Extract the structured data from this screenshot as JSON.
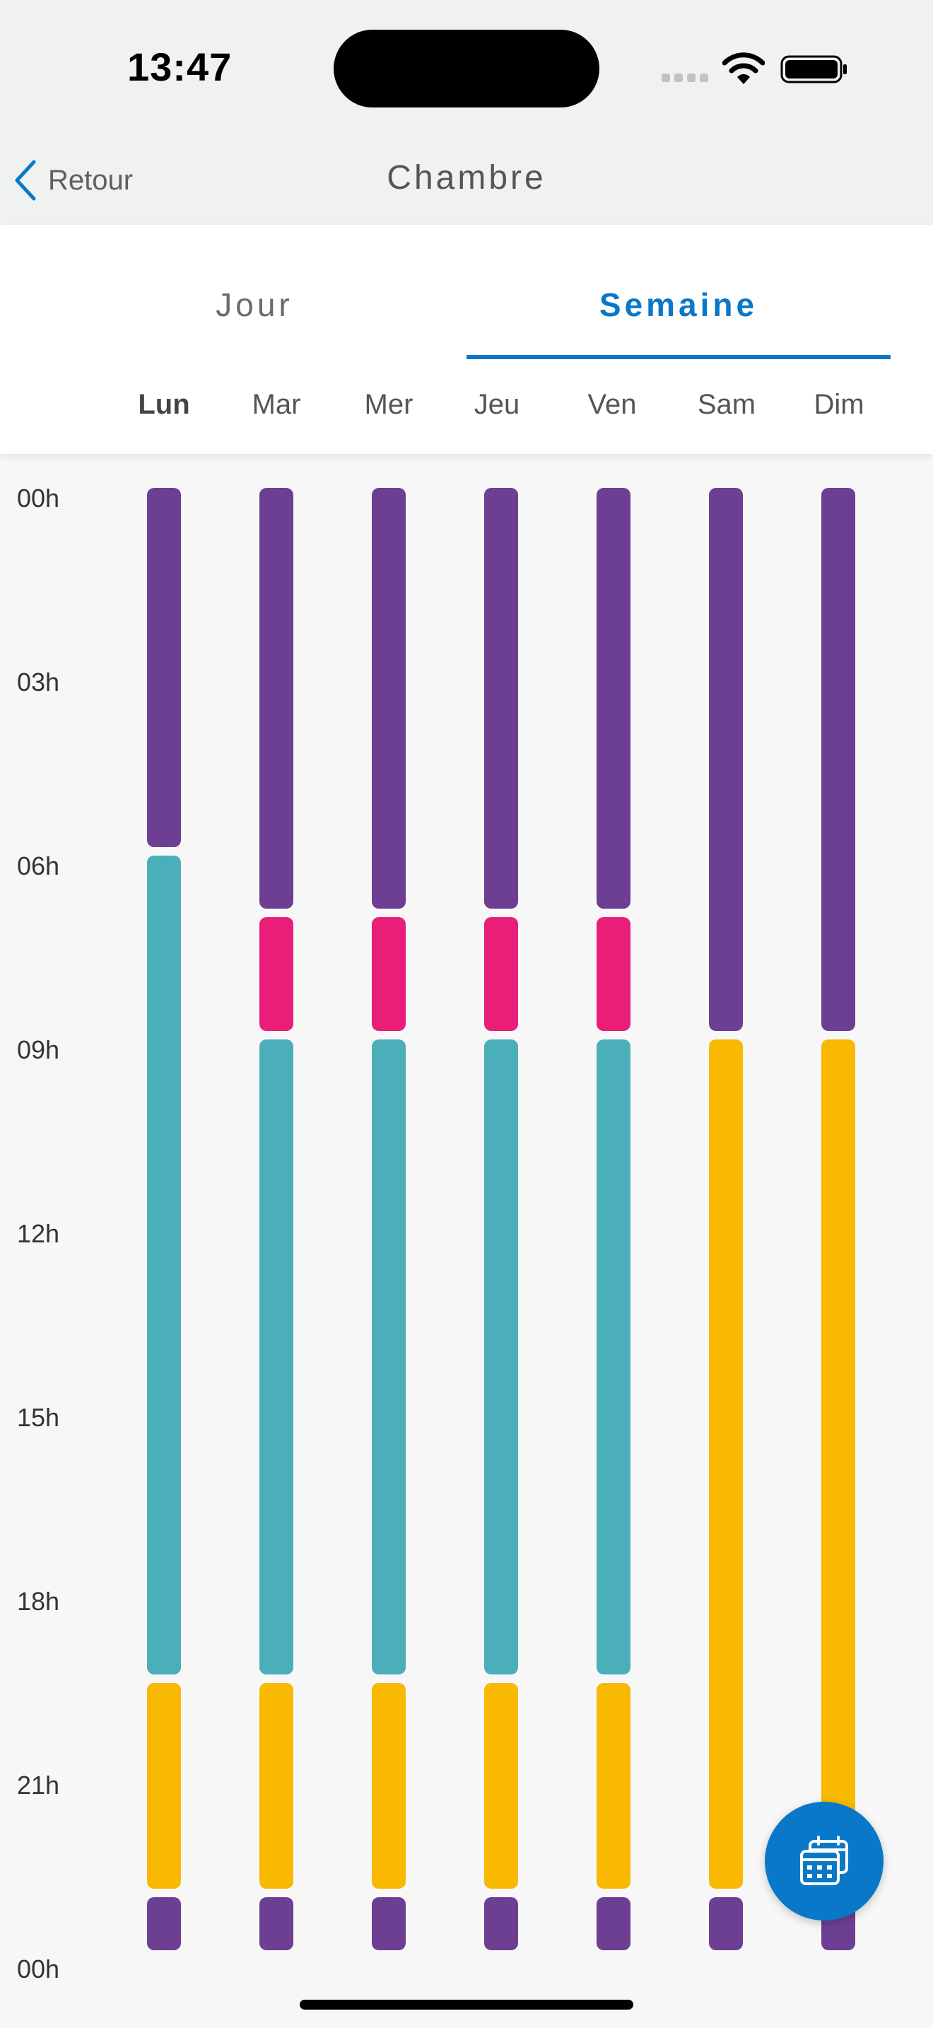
{
  "status_bar": {
    "time": "13:47"
  },
  "nav": {
    "back_label": "Retour",
    "title": "Chambre"
  },
  "tabs": [
    {
      "label": "Jour",
      "selected": false
    },
    {
      "label": "Semaine",
      "selected": true
    }
  ],
  "days": [
    {
      "label": "Lun",
      "active": true
    },
    {
      "label": "Mar",
      "active": false
    },
    {
      "label": "Mer",
      "active": false
    },
    {
      "label": "Jeu",
      "active": false
    },
    {
      "label": "Ven",
      "active": false
    },
    {
      "label": "Sam",
      "active": false
    },
    {
      "label": "Dim",
      "active": false
    }
  ],
  "hour_labels": [
    "00h",
    "03h",
    "06h",
    "09h",
    "12h",
    "15h",
    "18h",
    "21h",
    "00h"
  ],
  "colors": {
    "purple": "#6c3f93",
    "teal": "#4bafb9",
    "pink": "#e81e78",
    "yellow": "#f8b900",
    "accent": "#0a78c8"
  },
  "schedule": [
    [
      {
        "start": 0,
        "end": 6,
        "color": "purple"
      },
      {
        "start": 6,
        "end": 19.5,
        "color": "teal"
      },
      {
        "start": 19.5,
        "end": 23,
        "color": "yellow"
      },
      {
        "start": 23,
        "end": 24,
        "color": "purple"
      }
    ],
    [
      {
        "start": 0,
        "end": 7,
        "color": "purple"
      },
      {
        "start": 7,
        "end": 9,
        "color": "pink"
      },
      {
        "start": 9,
        "end": 19.5,
        "color": "teal"
      },
      {
        "start": 19.5,
        "end": 23,
        "color": "yellow"
      },
      {
        "start": 23,
        "end": 24,
        "color": "purple"
      }
    ],
    [
      {
        "start": 0,
        "end": 7,
        "color": "purple"
      },
      {
        "start": 7,
        "end": 9,
        "color": "pink"
      },
      {
        "start": 9,
        "end": 19.5,
        "color": "teal"
      },
      {
        "start": 19.5,
        "end": 23,
        "color": "yellow"
      },
      {
        "start": 23,
        "end": 24,
        "color": "purple"
      }
    ],
    [
      {
        "start": 0,
        "end": 7,
        "color": "purple"
      },
      {
        "start": 7,
        "end": 9,
        "color": "pink"
      },
      {
        "start": 9,
        "end": 19.5,
        "color": "teal"
      },
      {
        "start": 19.5,
        "end": 23,
        "color": "yellow"
      },
      {
        "start": 23,
        "end": 24,
        "color": "purple"
      }
    ],
    [
      {
        "start": 0,
        "end": 7,
        "color": "purple"
      },
      {
        "start": 7,
        "end": 9,
        "color": "pink"
      },
      {
        "start": 9,
        "end": 19.5,
        "color": "teal"
      },
      {
        "start": 19.5,
        "end": 23,
        "color": "yellow"
      },
      {
        "start": 23,
        "end": 24,
        "color": "purple"
      }
    ],
    [
      {
        "start": 0,
        "end": 9,
        "color": "purple"
      },
      {
        "start": 9,
        "end": 23,
        "color": "yellow"
      },
      {
        "start": 23,
        "end": 24,
        "color": "purple"
      }
    ],
    [
      {
        "start": 0,
        "end": 9,
        "color": "purple"
      },
      {
        "start": 9,
        "end": 23,
        "color": "yellow"
      },
      {
        "start": 23,
        "end": 24,
        "color": "purple"
      }
    ]
  ]
}
